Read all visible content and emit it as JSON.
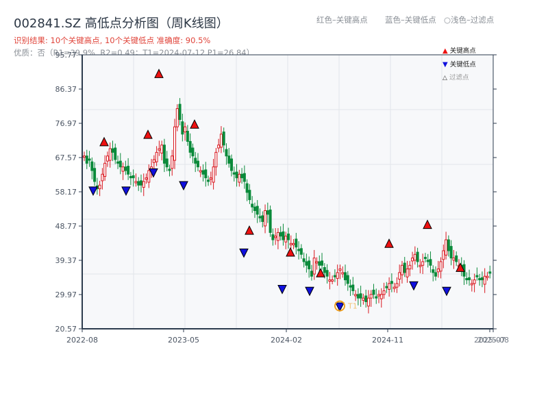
{
  "header": {
    "title": "002841.SZ 高低点分析图（周K线图）",
    "result": "识别结果: 10个关键高点, 10个关键低点  准确度: 90.5%",
    "quality": "优质：否（R1=39.9%, R2=0.49；T1=2024-07-12 P1=26.84）"
  },
  "top_legend": {
    "red": "红色–关键高点",
    "blue": "蓝色–关键低点",
    "light": "○浅色–过滤点"
  },
  "colors": {
    "up": "#d9161e",
    "down": "#0a8a3a",
    "high_marker": "#ee1111",
    "low_marker": "#1010dd",
    "t1_circle": "#f0a020",
    "axis": "#2b3a4c",
    "grid": "#e2e5e9",
    "plot_bg": "#f7f8fa"
  },
  "chart_data": {
    "type": "candlestick",
    "title": "002841.SZ 高低点分析图（周K线图）",
    "xlabel": "",
    "ylabel": "",
    "ylim": [
      20.57,
      95.77
    ],
    "y_ticks": [
      "20.57",
      "29.97",
      "39.37",
      "48.77",
      "58.17",
      "67.57",
      "76.97",
      "86.37",
      "95.77"
    ],
    "x_ticks": [
      "2022-08",
      "2023-05",
      "2024-02",
      "2024-11",
      "2025-07",
      "2025-08"
    ],
    "grid": true,
    "legend": [
      "关键高点",
      "关键低点",
      "过滤点"
    ],
    "legend_position": "upper right",
    "weekly_close": [
      68,
      66,
      67,
      64,
      61,
      59,
      60,
      63,
      66,
      68,
      70,
      69,
      67,
      66,
      65,
      65,
      64,
      63,
      62,
      62,
      61,
      60,
      60,
      61,
      62,
      64,
      65,
      67,
      69,
      70,
      71,
      66,
      65,
      64,
      68,
      76,
      81,
      78,
      74,
      76,
      72,
      69,
      68,
      66,
      65,
      64,
      63,
      62,
      61,
      62,
      65,
      69,
      71,
      74,
      71,
      68,
      66,
      64,
      63,
      62,
      63,
      62,
      61,
      58,
      56,
      54,
      53,
      52,
      51,
      50,
      53,
      52,
      47,
      45,
      46,
      47,
      46,
      45,
      46,
      45,
      44,
      44,
      43,
      42,
      41,
      39,
      38,
      37,
      35,
      40,
      39,
      38,
      38,
      36,
      35,
      34,
      34,
      35,
      36,
      37,
      36,
      34,
      33,
      32,
      31,
      30,
      29,
      29,
      29,
      28,
      29,
      30,
      30,
      29,
      30,
      30,
      31,
      32,
      33,
      33,
      32,
      33,
      36,
      38,
      36,
      37,
      38,
      40,
      41,
      39,
      38,
      39,
      40,
      39,
      38,
      36,
      35,
      37,
      39,
      42,
      45,
      42,
      40,
      40,
      39,
      38,
      37,
      35,
      34,
      34,
      33,
      34,
      35,
      34,
      34,
      35,
      35,
      36
    ],
    "key_highs": [
      {
        "date": "2022-09",
        "price": 70.8
      },
      {
        "date": "2022-12",
        "price": 72.8
      },
      {
        "date": "2023-01",
        "price": 89.5
      },
      {
        "date": "2023-05",
        "price": 75.6
      },
      {
        "date": "2023-10",
        "price": 46.5
      },
      {
        "date": "2024-02",
        "price": 40.5
      },
      {
        "date": "2024-05",
        "price": 34.8
      },
      {
        "date": "2024-11",
        "price": 42.9
      },
      {
        "date": "2025-02",
        "price": 48.1
      },
      {
        "date": "2025-05",
        "price": 36.3
      }
    ],
    "key_lows": [
      {
        "date": "2022-08",
        "price": 59.5
      },
      {
        "date": "2022-11",
        "price": 59.5
      },
      {
        "date": "2023-01",
        "price": 64.5
      },
      {
        "date": "2023-05",
        "price": 61.0
      },
      {
        "date": "2023-10",
        "price": 42.5
      },
      {
        "date": "2024-02",
        "price": 32.5
      },
      {
        "date": "2024-04",
        "price": 32.0
      },
      {
        "date": "2024-07",
        "price": 27.7
      },
      {
        "date": "2024-12",
        "price": 33.5
      },
      {
        "date": "2025-04",
        "price": 32.0
      }
    ],
    "annotations": [
      {
        "label": "T1",
        "date": "2024-07-12",
        "price": 26.84
      }
    ]
  },
  "legend_items": {
    "high": "关键高点",
    "low": "关键低点",
    "filtered": "过滤点"
  }
}
